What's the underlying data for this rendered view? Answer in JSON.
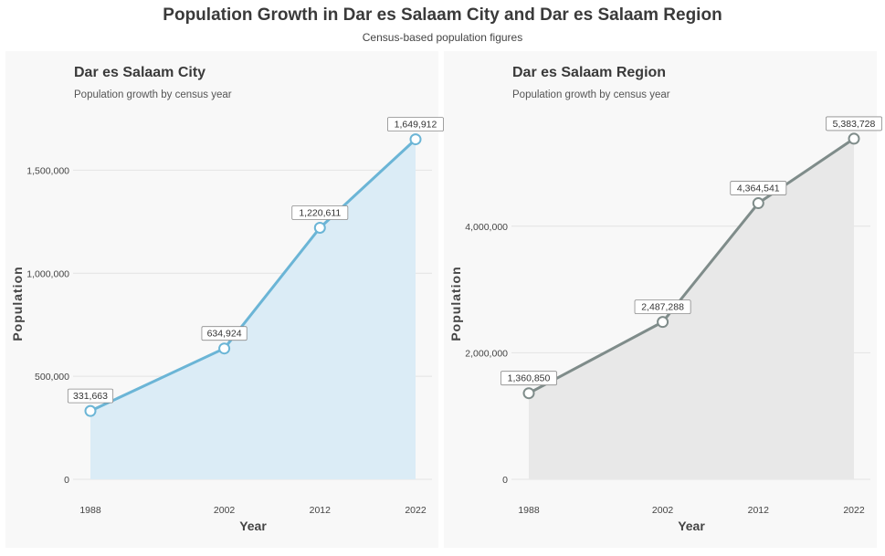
{
  "title": "Population Growth in Dar es Salaam City and Dar es Salaam Region",
  "subtitle": "Census-based population figures",
  "chart_data": [
    {
      "type": "area",
      "title": "Dar es Salaam City",
      "subtitle": "Population growth by census year",
      "xlabel": "Year",
      "ylabel": "Population",
      "x": [
        1988,
        2002,
        2012,
        2022
      ],
      "values": [
        331663,
        634924,
        1220611,
        1649912
      ],
      "value_labels": [
        "331,663",
        "634,924",
        "1,220,611",
        "1,649,912"
      ],
      "xlim": [
        1988,
        2022
      ],
      "ylim": [
        0,
        1750000
      ],
      "yticks": [
        0,
        500000,
        1000000,
        1500000
      ],
      "ytick_labels": [
        "0",
        "500,000",
        "1,000,000",
        "1,500,000"
      ],
      "line_color": "#6bb5d6",
      "fill_color": "#dbecf6",
      "grid": true
    },
    {
      "type": "area",
      "title": "Dar es Salaam Region",
      "subtitle": "Population growth by census year",
      "xlabel": "Year",
      "ylabel": "Population",
      "x": [
        1988,
        2002,
        2012,
        2022
      ],
      "values": [
        1360850,
        2487288,
        4364541,
        5383728
      ],
      "value_labels": [
        "1,360,850",
        "2,487,288",
        "4,364,541",
        "5,383,728"
      ],
      "xlim": [
        1988,
        2022
      ],
      "ylim": [
        0,
        5700000
      ],
      "yticks": [
        0,
        2000000,
        4000000
      ],
      "ytick_labels": [
        "0",
        "2,000,000",
        "4,000,000"
      ],
      "line_color": "#7f8c8a",
      "fill_color": "#e8e8e8",
      "grid": true
    }
  ]
}
